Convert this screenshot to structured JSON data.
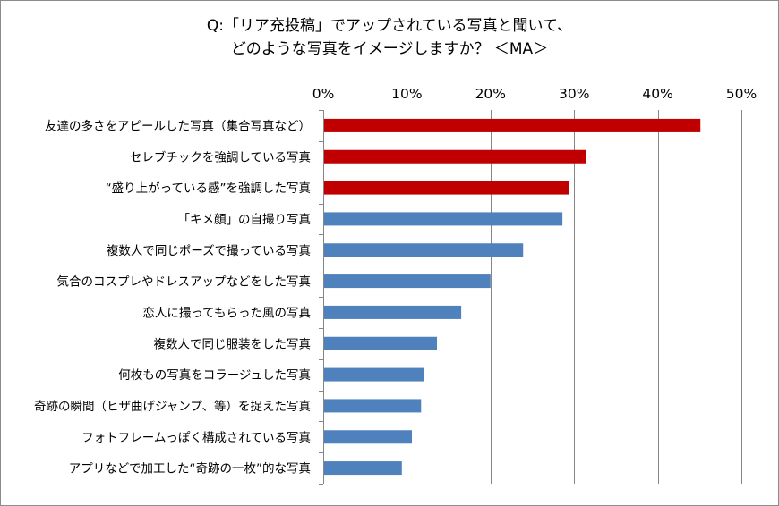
{
  "chart_data": {
    "type": "bar",
    "orientation": "horizontal",
    "title_lines": [
      "Q:「リア充投稿」でアップされている写真と聞いて、",
      "どのような写真をイメージしますか？ ＜MA＞"
    ],
    "xlabel": "",
    "ylabel": "",
    "xlim": [
      0,
      50
    ],
    "x_ticks": [
      "0%",
      "10%",
      "20%",
      "30%",
      "40%",
      "50%"
    ],
    "x_tick_values": [
      0,
      10,
      20,
      30,
      40,
      50
    ],
    "grid": true,
    "legend": false,
    "categories": [
      "友達の多さをアピールした写真（集合写真など）",
      "セレブチックを強調している写真",
      "“盛り上がっている感”を強調した写真",
      "「キメ顔」の自撮り写真",
      "複数人で同じポーズで撮っている写真",
      "気合のコスプレやドレスアップなどをした写真",
      "恋人に撮ってもらった風の写真",
      "複数人で同じ服装をした写真",
      "何枚もの写真をコラージュした写真",
      "奇跡の瞬間（ヒザ曲げジャンプ、等）を捉えた写真",
      "フォトフレームっぽく構成されている写真",
      "アプリなどで加工した“奇跡の一枚”的な写真"
    ],
    "values": [
      45.1,
      31.4,
      29.4,
      28.6,
      23.9,
      20.0,
      16.5,
      13.6,
      12.1,
      11.7,
      10.6,
      9.4
    ],
    "highlight_count": 3,
    "colors": {
      "highlight": "#c00000",
      "normal": "#4f81bd",
      "grid": "#868686",
      "axis": "#868686"
    }
  }
}
